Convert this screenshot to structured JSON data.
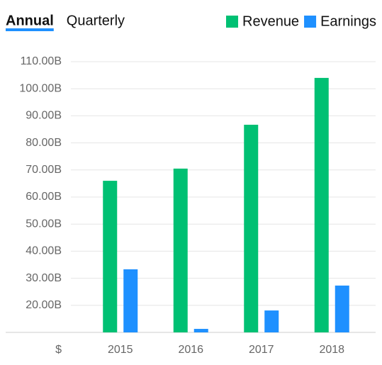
{
  "tabs": [
    "Annual",
    "Quarterly"
  ],
  "active_tab": 0,
  "chart_data": {
    "type": "bar",
    "ylabel": "$",
    "categories": [
      "2015",
      "2016",
      "2017",
      "2018"
    ],
    "series": [
      {
        "name": "Revenue",
        "color": "#00c073",
        "values": [
          66.0,
          70.5,
          86.7,
          104.0
        ]
      },
      {
        "name": "Earnings",
        "color": "#1e90ff",
        "values": [
          33.3,
          11.3,
          18.1,
          27.3
        ]
      }
    ],
    "ylim": [
      10,
      110
    ],
    "yticks": [
      {
        "value": 20,
        "label": "20.00B"
      },
      {
        "value": 30,
        "label": "30.00B"
      },
      {
        "value": 40,
        "label": "40.00B"
      },
      {
        "value": 50,
        "label": "50.00B"
      },
      {
        "value": 60,
        "label": "60.00B"
      },
      {
        "value": 70,
        "label": "70.00B"
      },
      {
        "value": 80,
        "label": "80.00B"
      },
      {
        "value": 90,
        "label": "90.00B"
      },
      {
        "value": 100,
        "label": "100.00B"
      },
      {
        "value": 110,
        "label": "110.00B"
      }
    ],
    "grid": true
  }
}
